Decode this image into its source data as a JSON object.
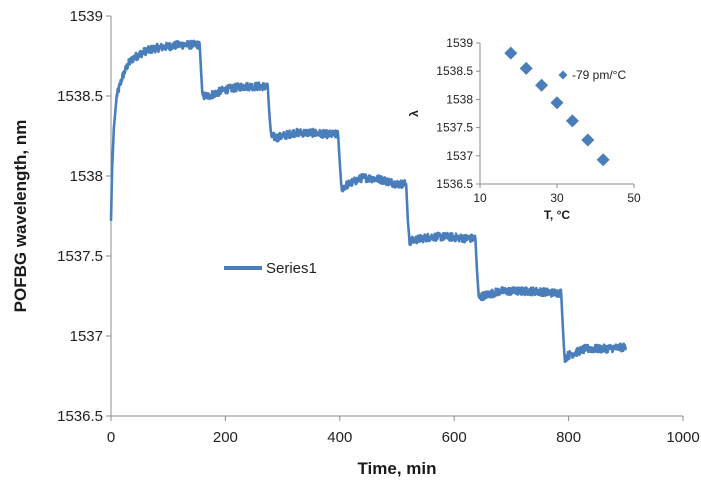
{
  "chart_data": [
    {
      "type": "line",
      "xlabel": "Time, min",
      "ylabel": "POFBG wavelength, nm",
      "xlim": [
        0,
        1000
      ],
      "ylim": [
        1536.5,
        1539
      ],
      "x_ticks": [
        "0",
        "200",
        "400",
        "600",
        "800",
        "1000"
      ],
      "y_ticks": [
        "1536.5",
        "1537",
        "1537.5",
        "1538",
        "1538.5",
        "1539"
      ],
      "grid": false,
      "legend": "center-left",
      "series": [
        {
          "name": "Series1",
          "color": "#4a7ebb",
          "noise_amplitude": 0.025,
          "x": [
            0,
            2,
            5,
            10,
            20,
            30,
            40,
            50,
            60,
            80,
            100,
            120,
            140,
            155,
            158,
            160,
            170,
            200,
            230,
            260,
            274,
            277,
            280,
            290,
            320,
            350,
            380,
            397,
            400,
            403,
            410,
            440,
            470,
            500,
            516,
            519,
            522,
            530,
            560,
            590,
            620,
            637,
            640,
            643,
            650,
            680,
            710,
            740,
            770,
            787,
            790,
            793,
            800,
            830,
            860,
            900
          ],
          "y": [
            1537.72,
            1538.05,
            1538.3,
            1538.5,
            1538.62,
            1538.7,
            1538.74,
            1538.76,
            1538.78,
            1538.8,
            1538.81,
            1538.82,
            1538.82,
            1538.82,
            1538.62,
            1538.5,
            1538.5,
            1538.54,
            1538.56,
            1538.56,
            1538.56,
            1538.38,
            1538.25,
            1538.24,
            1538.27,
            1538.27,
            1538.26,
            1538.26,
            1538.08,
            1537.92,
            1537.94,
            1537.99,
            1537.98,
            1537.95,
            1537.95,
            1537.72,
            1537.59,
            1537.6,
            1537.62,
            1537.62,
            1537.61,
            1537.61,
            1537.4,
            1537.24,
            1537.25,
            1537.28,
            1537.28,
            1537.28,
            1537.27,
            1537.27,
            1537.05,
            1536.86,
            1536.88,
            1536.92,
            1536.92,
            1536.93
          ]
        }
      ]
    },
    {
      "type": "scatter",
      "title": "",
      "xlabel": "T, °C",
      "ylabel": "λ",
      "xlim": [
        10,
        50
      ],
      "ylim": [
        1536.5,
        1539
      ],
      "x_ticks": [
        "10",
        "30",
        "50"
      ],
      "y_ticks": [
        "1536.5",
        "1537",
        "1537.5",
        "1538",
        "1538.5",
        "1539"
      ],
      "grid": false,
      "legend": "top-right",
      "series": [
        {
          "name": "-79 pm/°C",
          "color": "#4a7ebb",
          "marker": "diamond",
          "x": [
            18,
            22,
            26,
            30,
            34,
            38,
            42
          ],
          "y": [
            1538.82,
            1538.55,
            1538.25,
            1537.94,
            1537.62,
            1537.28,
            1536.93
          ]
        }
      ]
    }
  ]
}
